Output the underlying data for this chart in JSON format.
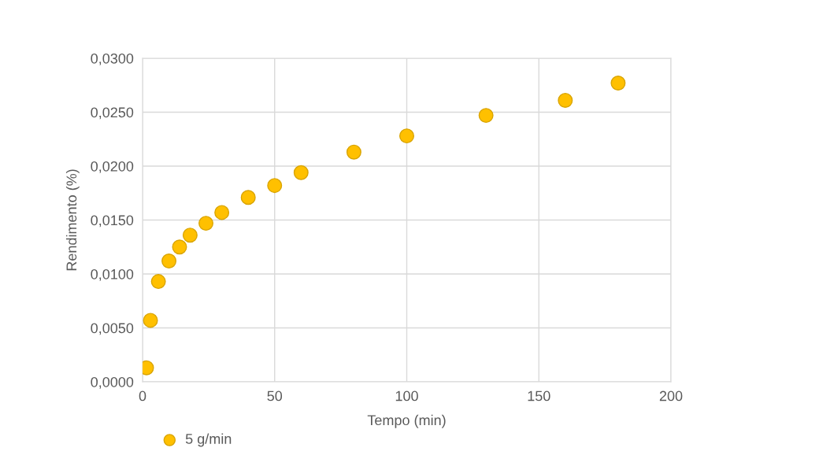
{
  "chart_data": {
    "type": "scatter",
    "xlabel": "Tempo (min)",
    "ylabel": "Rendimento (%)",
    "x": [
      1.5,
      3,
      6,
      10,
      14,
      18,
      24,
      30,
      40,
      50,
      60,
      80,
      100,
      130,
      160,
      180
    ],
    "series": [
      {
        "name": "5 g/min",
        "color": "#ffc000",
        "values": [
          0.0013,
          0.0057,
          0.0093,
          0.0112,
          0.0125,
          0.0136,
          0.0147,
          0.0157,
          0.0171,
          0.0182,
          0.0194,
          0.0213,
          0.0228,
          0.0247,
          0.0261,
          0.0277
        ]
      }
    ],
    "xlim": [
      0,
      200
    ],
    "xticks": [
      0,
      50,
      100,
      150,
      200
    ],
    "ylim": [
      0,
      0.03
    ],
    "yticks": [
      {
        "value": 0,
        "label": "0,0000"
      },
      {
        "value": 0.005,
        "label": "0,0050"
      },
      {
        "value": 0.01,
        "label": "0,0100"
      },
      {
        "value": 0.015,
        "label": "0,0150"
      },
      {
        "value": 0.02,
        "label": "0,0200"
      },
      {
        "value": 0.025,
        "label": "0,0250"
      },
      {
        "value": 0.03,
        "label": "0,0300"
      }
    ],
    "grid": true,
    "legend": "bottom left",
    "marker": "circle"
  }
}
